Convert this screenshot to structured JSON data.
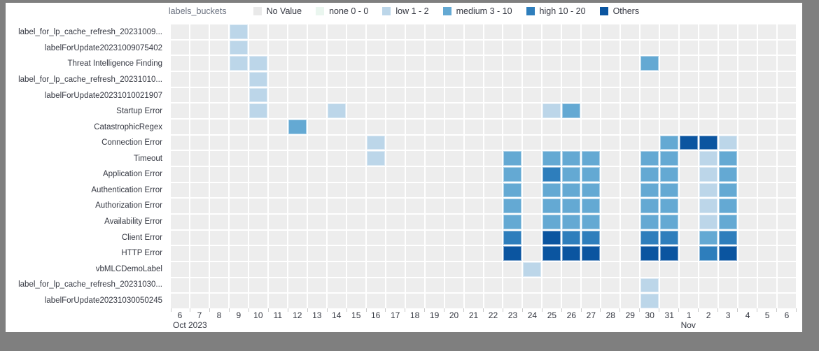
{
  "frame": {
    "outer_bg": "#7f7f7f",
    "panel_bg": "#ffffff"
  },
  "legend": {
    "title": "labels_buckets",
    "items": [
      {
        "key": "novalue",
        "label": "No Value",
        "color": "#e9e9e9"
      },
      {
        "key": "none",
        "label": "none 0 - 0",
        "color": "#eaf6ef"
      },
      {
        "key": "low",
        "label": "low 1 - 2",
        "color": "#bcd6e9"
      },
      {
        "key": "medium",
        "label": "medium 3 - 10",
        "color": "#64a9d3"
      },
      {
        "key": "high",
        "label": "high 10 - 20",
        "color": "#2e7ebc"
      },
      {
        "key": "others",
        "label": "Others",
        "color": "#0b55a0"
      }
    ]
  },
  "chart_data": {
    "type": "heatmap",
    "title": "labels_buckets",
    "empty_color": "#ededed",
    "x_labels": [
      "6",
      "7",
      "8",
      "9",
      "10",
      "11",
      "12",
      "13",
      "14",
      "15",
      "16",
      "17",
      "18",
      "19",
      "20",
      "21",
      "22",
      "23",
      "24",
      "25",
      "26",
      "27",
      "28",
      "29",
      "30",
      "31",
      "1",
      "2",
      "3",
      "4",
      "5",
      "6"
    ],
    "x_secondary": [
      {
        "index": 0,
        "label": "Oct 2023"
      },
      {
        "index": 26,
        "label": "Nov"
      }
    ],
    "y_labels": [
      "label_for_lp_cache_refresh_20231009...",
      "labelForUpdate20231009075402",
      "Threat Intelligence Finding",
      "label_for_lp_cache_refresh_20231010...",
      "labelForUpdate20231010021907",
      "Startup Error",
      "CatastrophicRegex",
      "Connection Error",
      "Timeout",
      "Application Error",
      "Authentication Error",
      "Authorization Error",
      "Availability Error",
      "Client Error",
      "HTTP Error",
      "vbMLCDemoLabel",
      "label_for_lp_cache_refresh_20231030...",
      "labelForUpdate20231030050245"
    ],
    "buckets_legend_note": "cell values are bucket keys from legend.items",
    "cells": [
      [
        0,
        3,
        "low"
      ],
      [
        1,
        3,
        "low"
      ],
      [
        2,
        3,
        "low"
      ],
      [
        2,
        4,
        "low"
      ],
      [
        2,
        24,
        "medium"
      ],
      [
        3,
        4,
        "low"
      ],
      [
        4,
        4,
        "low"
      ],
      [
        5,
        4,
        "low"
      ],
      [
        5,
        8,
        "low"
      ],
      [
        5,
        19,
        "low"
      ],
      [
        5,
        20,
        "medium"
      ],
      [
        6,
        6,
        "medium"
      ],
      [
        7,
        10,
        "low"
      ],
      [
        7,
        25,
        "medium"
      ],
      [
        7,
        26,
        "others"
      ],
      [
        7,
        27,
        "others"
      ],
      [
        7,
        28,
        "low"
      ],
      [
        8,
        10,
        "low"
      ],
      [
        8,
        17,
        "medium"
      ],
      [
        8,
        19,
        "medium"
      ],
      [
        8,
        20,
        "medium"
      ],
      [
        8,
        21,
        "medium"
      ],
      [
        8,
        24,
        "medium"
      ],
      [
        8,
        25,
        "medium"
      ],
      [
        8,
        27,
        "low"
      ],
      [
        8,
        28,
        "medium"
      ],
      [
        9,
        17,
        "medium"
      ],
      [
        9,
        19,
        "high"
      ],
      [
        9,
        20,
        "medium"
      ],
      [
        9,
        21,
        "medium"
      ],
      [
        9,
        24,
        "medium"
      ],
      [
        9,
        25,
        "medium"
      ],
      [
        9,
        27,
        "low"
      ],
      [
        9,
        28,
        "medium"
      ],
      [
        10,
        17,
        "medium"
      ],
      [
        10,
        19,
        "medium"
      ],
      [
        10,
        20,
        "medium"
      ],
      [
        10,
        21,
        "medium"
      ],
      [
        10,
        24,
        "medium"
      ],
      [
        10,
        25,
        "medium"
      ],
      [
        10,
        27,
        "low"
      ],
      [
        10,
        28,
        "medium"
      ],
      [
        11,
        17,
        "medium"
      ],
      [
        11,
        19,
        "medium"
      ],
      [
        11,
        20,
        "medium"
      ],
      [
        11,
        21,
        "medium"
      ],
      [
        11,
        24,
        "medium"
      ],
      [
        11,
        25,
        "medium"
      ],
      [
        11,
        27,
        "low"
      ],
      [
        11,
        28,
        "medium"
      ],
      [
        12,
        17,
        "medium"
      ],
      [
        12,
        19,
        "medium"
      ],
      [
        12,
        20,
        "medium"
      ],
      [
        12,
        21,
        "medium"
      ],
      [
        12,
        24,
        "medium"
      ],
      [
        12,
        25,
        "medium"
      ],
      [
        12,
        27,
        "low"
      ],
      [
        12,
        28,
        "medium"
      ],
      [
        13,
        17,
        "high"
      ],
      [
        13,
        19,
        "others"
      ],
      [
        13,
        20,
        "high"
      ],
      [
        13,
        21,
        "high"
      ],
      [
        13,
        24,
        "high"
      ],
      [
        13,
        25,
        "high"
      ],
      [
        13,
        27,
        "medium"
      ],
      [
        13,
        28,
        "high"
      ],
      [
        14,
        17,
        "others"
      ],
      [
        14,
        19,
        "others"
      ],
      [
        14,
        20,
        "others"
      ],
      [
        14,
        21,
        "others"
      ],
      [
        14,
        24,
        "others"
      ],
      [
        14,
        25,
        "others"
      ],
      [
        14,
        27,
        "high"
      ],
      [
        14,
        28,
        "others"
      ],
      [
        15,
        18,
        "low"
      ],
      [
        16,
        24,
        "low"
      ],
      [
        17,
        24,
        "low"
      ]
    ]
  }
}
